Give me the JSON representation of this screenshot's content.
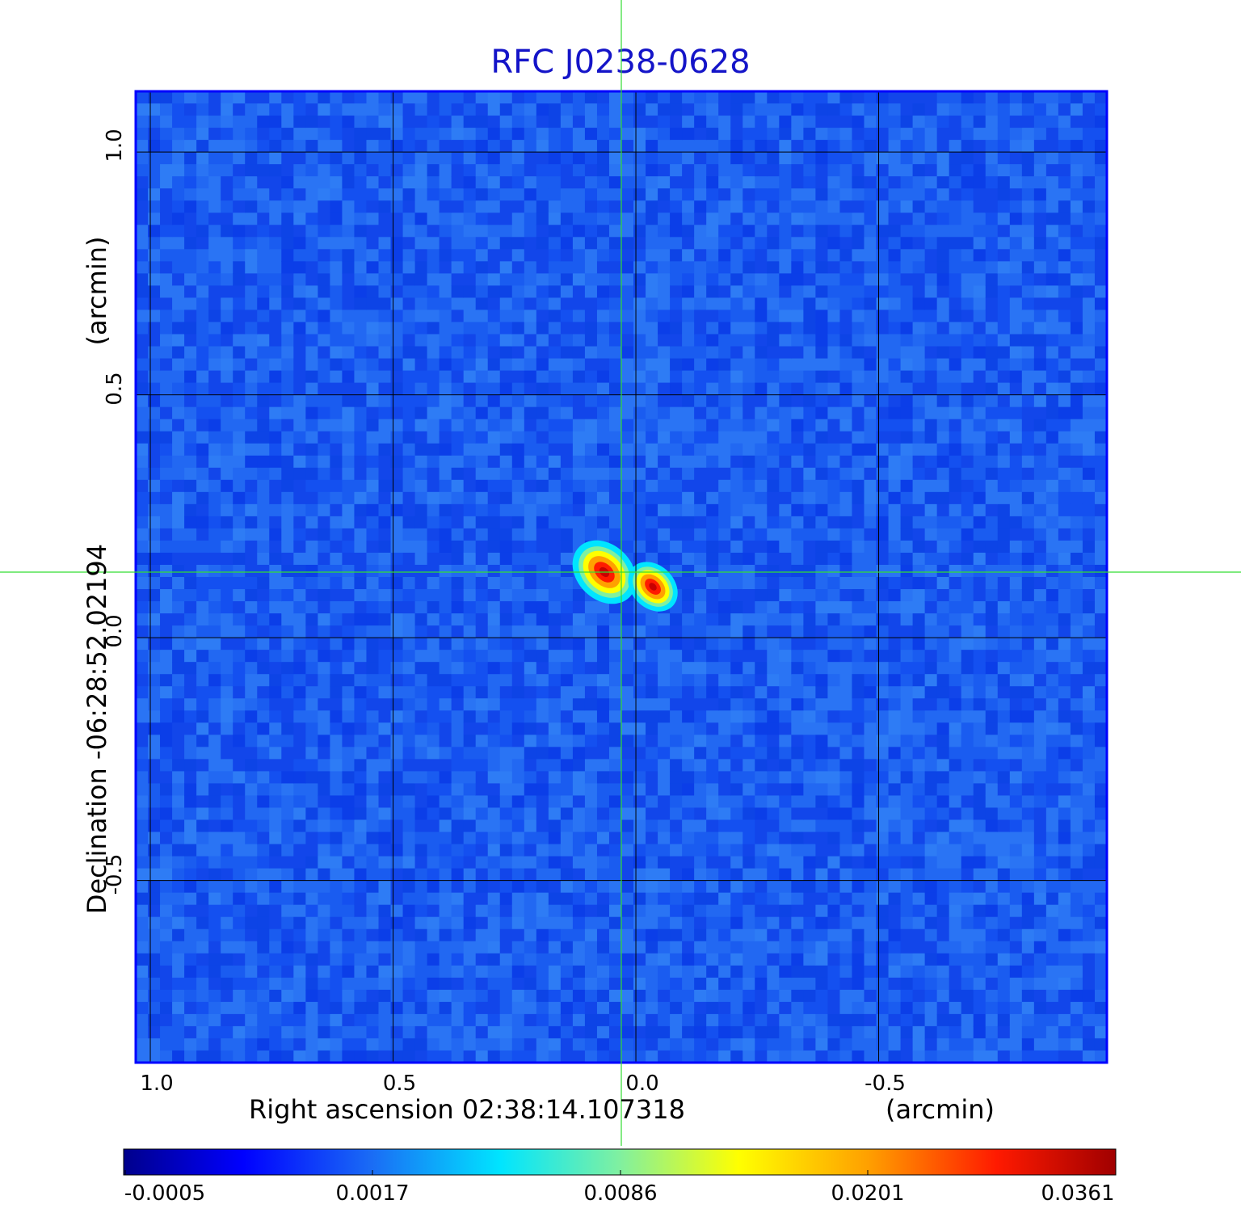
{
  "chart_data": {
    "type": "heatmap",
    "title": "RFC J0238-0628",
    "xlabel": "Right ascension  02:38:14.107318",
    "xunit": "(arcmin)",
    "ylabel": "Declination  -06:28:52.02194",
    "yunit": "(arcmin)",
    "x_ticks": [
      "1.0",
      "0.5",
      "0.0",
      "-0.5"
    ],
    "x_tick_values": [
      1.0,
      0.5,
      0.0,
      -0.5
    ],
    "y_ticks": [
      "1.0",
      "0.5",
      "0.0",
      "-0.5"
    ],
    "y_tick_values": [
      1.0,
      0.5,
      0.0,
      -0.5
    ],
    "xlim": [
      1.03,
      -0.97
    ],
    "ylim": [
      -0.875,
      1.125
    ],
    "grid": true,
    "colorbar": {
      "ticks": [
        "-0.0005",
        "0.0017",
        "0.0086",
        "0.0201",
        "0.0361"
      ],
      "tick_values": [
        -0.0005,
        0.0017,
        0.0086,
        0.0201,
        0.0361
      ],
      "colormap": "jet"
    },
    "sources": [
      {
        "x": 0.065,
        "y": 0.135,
        "peak": 0.0361
      },
      {
        "x": -0.035,
        "y": 0.105,
        "peak": 0.033
      }
    ],
    "crosshair": {
      "x": 0.03,
      "y": 0.135
    }
  },
  "colors": {
    "title": "#1414c8",
    "background_noise": "#1a5cf0",
    "grid": "#000000",
    "crosshair": "#33dd33"
  }
}
